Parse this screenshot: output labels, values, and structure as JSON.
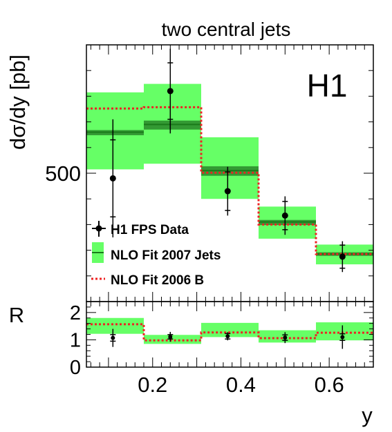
{
  "chart_data": [
    {
      "type": "bar",
      "title": "two central jets",
      "ylabel": "dσ/dy [pb]",
      "xlabel": "",
      "annotation": "H1",
      "yticks": [
        {
          "value": 500,
          "label": "500"
        }
      ],
      "xlim": [
        0.05,
        0.7
      ],
      "ylim": [
        0,
        1000
      ],
      "bin_edges": [
        0.05,
        0.18,
        0.31,
        0.44,
        0.57,
        0.7
      ],
      "legend": [
        {
          "key": "data",
          "label": "H1 FPS Data"
        },
        {
          "key": "nlo2007",
          "label": "NLO Fit 2007 Jets"
        },
        {
          "key": "nlo2006",
          "label": "NLO Fit 2006 B"
        }
      ],
      "legend_position": "bottom-left",
      "series": [
        {
          "key": "data",
          "name": "H1 FPS Data",
          "x": [
            0.11,
            0.24,
            0.37,
            0.5,
            0.63
          ],
          "values": [
            480,
            820,
            430,
            335,
            175
          ],
          "stat_err": [
            150,
            110,
            75,
            55,
            45
          ],
          "total_err": [
            230,
            165,
            95,
            75,
            60
          ]
        },
        {
          "key": "nlo2007",
          "name": "NLO Fit 2007 Jets",
          "values": [
            660,
            690,
            510,
            310,
            185
          ],
          "band_low": [
            515,
            537,
            400,
            245,
            145
          ],
          "band_high": [
            815,
            848,
            640,
            370,
            222
          ],
          "inner_low": [
            648,
            670,
            490,
            298,
            178
          ],
          "inner_high": [
            668,
            705,
            527,
            318,
            192
          ]
        },
        {
          "key": "nlo2006",
          "name": "NLO Fit 2006 B",
          "values": [
            752,
            757,
            502,
            300,
            185
          ]
        }
      ]
    },
    {
      "type": "bar",
      "title": "",
      "ylabel": "R",
      "xlabel": "y",
      "xlim": [
        0.05,
        0.7
      ],
      "ylim": [
        0,
        2.4
      ],
      "xticks": [
        {
          "value": 0.2,
          "label": "0.2"
        },
        {
          "value": 0.4,
          "label": "0.4"
        },
        {
          "value": 0.6,
          "label": "0.6"
        }
      ],
      "yticks": [
        {
          "value": 0,
          "label": "0"
        },
        {
          "value": 1,
          "label": "1"
        },
        {
          "value": 2,
          "label": "2"
        }
      ],
      "bin_edges": [
        0.05,
        0.18,
        0.31,
        0.44,
        0.57,
        0.7
      ],
      "series": [
        {
          "key": "data",
          "x": [
            0.11,
            0.24,
            0.37,
            0.5,
            0.63
          ],
          "values": [
            1.07,
            1.11,
            1.13,
            1.08,
            1.1
          ],
          "stat_err": [
            0.12,
            0.08,
            0.1,
            0.1,
            0.12
          ],
          "total_err": [
            0.33,
            0.18,
            0.15,
            0.2,
            0.43
          ]
        },
        {
          "key": "nlo2007",
          "band_low": [
            1.22,
            0.85,
            1.1,
            0.9,
            0.98
          ],
          "band_high": [
            1.8,
            1.18,
            1.62,
            1.35,
            1.64
          ]
        },
        {
          "key": "nlo2006",
          "values": [
            1.57,
            0.98,
            1.27,
            1.06,
            1.26
          ]
        }
      ]
    }
  ],
  "colors": {
    "band": "#66ff66",
    "inner_band": "#339933",
    "central_line": "#1a7a1a",
    "dotted": "#ee2222",
    "data": "#000000"
  }
}
